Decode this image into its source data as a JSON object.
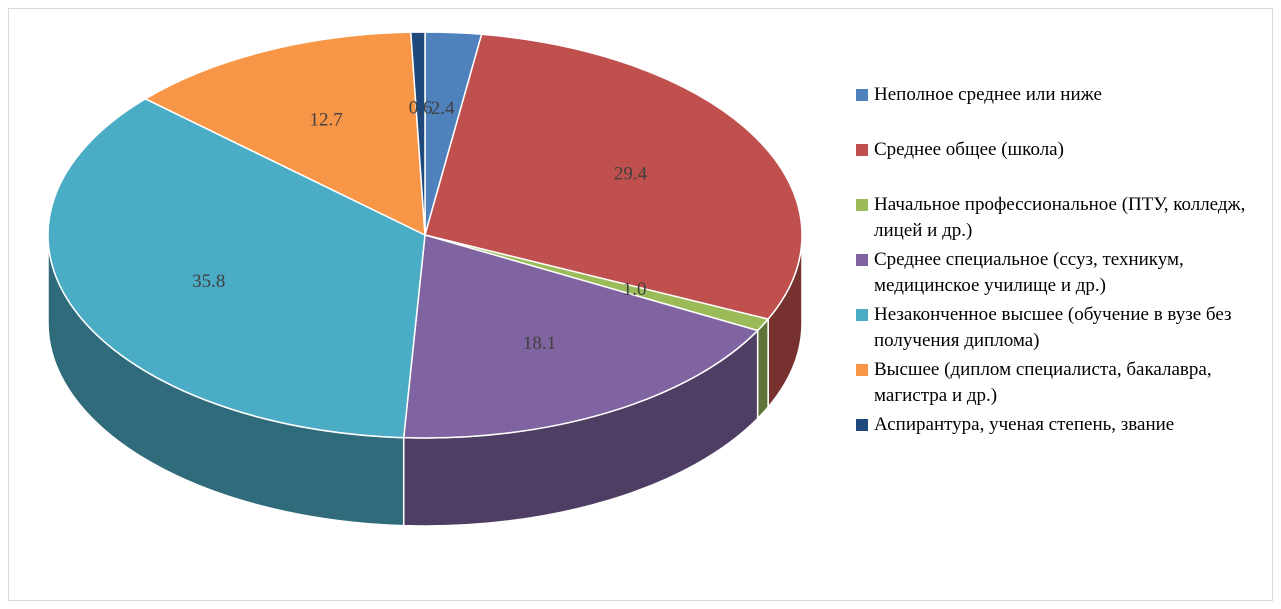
{
  "chart_data": {
    "type": "pie",
    "categories": [
      "Неполное среднее или ниже",
      "Среднее общее (школа)",
      "Начальное профессиональное (ПТУ, колледж, лицей и др.)",
      "Среднее специальное (ссуз, техникум, медицинское училище и др.)",
      "Незаконченное высшее (обучение в вузе без получения диплома)",
      "Высшее (диплом специалиста, бакалавра, магистра и др.)",
      "Аспирантура, ученая степень, звание"
    ],
    "values": [
      2.4,
      29.4,
      1.0,
      18.1,
      35.8,
      12.7,
      0.6
    ],
    "value_labels": [
      "2.4",
      "29.4",
      "1.0",
      "18.1",
      "35.8",
      "12.7",
      "0.6"
    ],
    "colors": [
      "#4f81bd",
      "#c0504d",
      "#9bbb59",
      "#8064a2",
      "#4bacc6",
      "#f79646",
      "#1f497d"
    ],
    "legend": "right"
  }
}
